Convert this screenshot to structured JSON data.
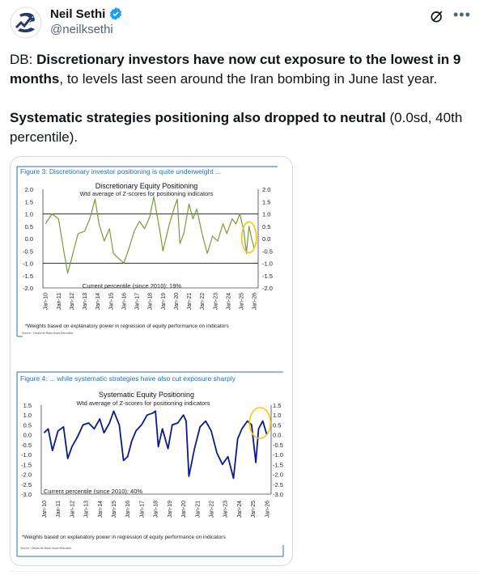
{
  "author": {
    "name": "Neil Sethi",
    "handle": "@neilksethi",
    "verified": true
  },
  "tweet": {
    "line1_prefix": "DB: ",
    "line1_bold": "Discretionary investors have now cut exposure to the lowest in 9 months",
    "line1_rest": ", to levels last seen around the Iran bombing in June last year.",
    "line2_bold": "Systematic strategies positioning also dropped to neutral",
    "line2_rest": " (0.0sd, 40th percentile)."
  },
  "icons": {
    "grok": "grok-icon",
    "more": "more-icon",
    "verified": "verified-badge-icon"
  },
  "colors": {
    "accent": "#1d9bf0",
    "discretionary_line": "#7a9a3a",
    "systematic_line": "#0b1a8a",
    "highlight_circle": "#f5c518",
    "figure_title": "#2a6fb0"
  },
  "chart_data": [
    {
      "type": "line",
      "figure_label": "Figure 3: Discretionary investor positioning is quite underweight ...",
      "title": "Discretionary Equity Positioning",
      "subtitle": "Wtd average of Z-scores for positioning indicators",
      "annotation": "Current percentile (since 2010): 19%",
      "footnote": "*Weights based on explanatory power in regression of equity performance on indicators",
      "source": "Source : Deutsche Bank Asset Allocation",
      "ylim": [
        -2.0,
        2.0
      ],
      "yticks": [
        "2.0",
        "1.5",
        "1.0",
        "0.5",
        "0.0",
        "-0.5",
        "-1.0",
        "-1.5",
        "-2.0"
      ],
      "reference_lines": [
        1.0,
        -1.0
      ],
      "x_ticks": [
        "Jan-10",
        "Jan-11",
        "Jan-12",
        "Jan-13",
        "Jan-14",
        "Jan-15",
        "Jan-16",
        "Jan-17",
        "Jan-18",
        "Jan-19",
        "Jan-20",
        "Jan-21",
        "Jan-22",
        "Jan-23",
        "Jan-24",
        "Jan-25",
        "Jan-26"
      ],
      "series": [
        {
          "name": "Discretionary Equity Positioning",
          "x": [
            2010.0,
            2010.5,
            2011.0,
            2011.4,
            2011.7,
            2012.0,
            2012.5,
            2013.0,
            2013.4,
            2013.8,
            2014.1,
            2014.5,
            2014.9,
            2015.2,
            2015.6,
            2016.0,
            2016.4,
            2016.8,
            2017.2,
            2017.6,
            2018.0,
            2018.3,
            2018.8,
            2019.0,
            2019.5,
            2019.9,
            2020.1,
            2020.3,
            2020.6,
            2021.0,
            2021.3,
            2021.6,
            2022.0,
            2022.4,
            2022.8,
            2023.2,
            2023.6,
            2023.9,
            2024.3,
            2024.6,
            2024.9,
            2025.2,
            2025.4,
            2025.6,
            2025.8,
            2026.0
          ],
          "values": [
            0.6,
            1.0,
            0.8,
            -0.5,
            -1.4,
            -0.8,
            0.2,
            0.3,
            0.8,
            1.6,
            0.6,
            -0.1,
            0.4,
            -0.6,
            -0.8,
            -1.0,
            -0.4,
            0.3,
            0.7,
            0.4,
            0.9,
            1.7,
            0.2,
            -0.5,
            0.6,
            1.3,
            1.6,
            -0.2,
            0.2,
            1.4,
            0.8,
            1.2,
            0.2,
            -0.6,
            0.1,
            -0.1,
            0.6,
            0.2,
            0.8,
            0.6,
            1.0,
            0.3,
            -0.6,
            0.5,
            0.0,
            -0.4
          ]
        }
      ]
    },
    {
      "type": "line",
      "figure_label": "Figure 4: ... while systematic strategies have also cut exposure sharply",
      "title": "Systematic Equity Positioning",
      "subtitle": "Wtd average of Z-scores for positioning indicators",
      "annotation": "Current percentile (since 2010): 40%",
      "footnote": "*Weights based on explanatory power in regression of equity performance on indicators",
      "source": "Source : Deutsche Bank Asset Allocation",
      "ylim": [
        -3.0,
        1.5
      ],
      "yticks": [
        "1.5",
        "1.0",
        "0.5",
        "0.0",
        "-0.5",
        "-1.0",
        "-1.5",
        "-2.0",
        "-2.5",
        "-3.0"
      ],
      "x_ticks": [
        "Jan-10",
        "Jan-11",
        "Jan-12",
        "Jan-13",
        "Jan-14",
        "Jan-15",
        "Jan-16",
        "Jan-17",
        "Jan-18",
        "Jan-19",
        "Jan-20",
        "Jan-21",
        "Jan-22",
        "Jan-23",
        "Jan-24",
        "Jan-25",
        "Jan-26"
      ],
      "series": [
        {
          "name": "Systematic Equity Positioning",
          "x": [
            2010.0,
            2010.3,
            2010.6,
            2011.0,
            2011.4,
            2011.7,
            2012.0,
            2012.4,
            2012.8,
            2013.2,
            2013.6,
            2014.0,
            2014.3,
            2014.7,
            2015.0,
            2015.4,
            2015.7,
            2016.0,
            2016.3,
            2016.6,
            2017.0,
            2017.4,
            2017.8,
            2018.0,
            2018.2,
            2018.5,
            2018.9,
            2019.2,
            2019.6,
            2020.0,
            2020.2,
            2020.4,
            2020.8,
            2021.2,
            2021.6,
            2022.0,
            2022.4,
            2022.8,
            2023.2,
            2023.6,
            2023.9,
            2024.2,
            2024.6,
            2024.9,
            2025.2,
            2025.4,
            2025.7,
            2026.0
          ],
          "values": [
            0.1,
            0.3,
            -0.8,
            0.2,
            0.4,
            -1.2,
            -0.6,
            -0.1,
            0.5,
            0.6,
            0.3,
            0.8,
            0.1,
            0.6,
            1.2,
            0.5,
            -1.3,
            -1.1,
            -0.3,
            0.2,
            0.5,
            1.0,
            1.1,
            1.2,
            -0.6,
            0.3,
            -0.7,
            0.5,
            0.6,
            1.0,
            0.7,
            -2.1,
            -0.7,
            0.4,
            0.7,
            0.2,
            -0.9,
            -1.5,
            -1.1,
            -2.2,
            -0.2,
            0.3,
            0.7,
            0.5,
            -1.4,
            0.3,
            0.7,
            0.0
          ]
        }
      ]
    }
  ]
}
